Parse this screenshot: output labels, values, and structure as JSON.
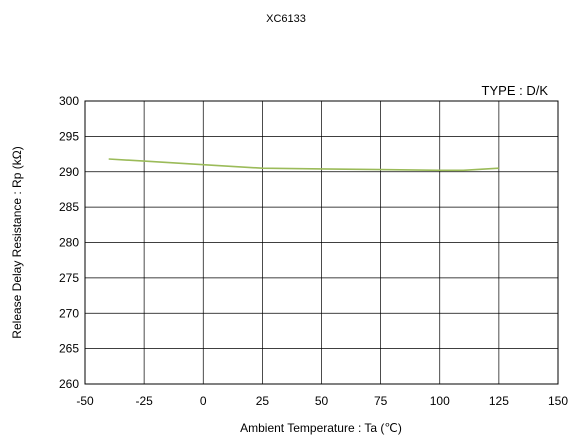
{
  "chart_data": {
    "type": "line",
    "title": "XC6133",
    "annotation": "TYPE : D/K",
    "xlabel": "Ambient Temperature : Ta (℃)",
    "ylabel": "Release Delay Resistance : Rp (kΩ)",
    "xlim": [
      -50,
      150
    ],
    "ylim": [
      260,
      300
    ],
    "xticks": [
      -50,
      -25,
      0,
      25,
      50,
      75,
      100,
      125,
      150
    ],
    "yticks": [
      260,
      265,
      270,
      275,
      280,
      285,
      290,
      295,
      300
    ],
    "grid": true,
    "series": [
      {
        "color": "#9bbb59",
        "x": [
          -40,
          -25,
          0,
          25,
          50,
          75,
          100,
          110,
          125
        ],
        "y": [
          291.8,
          291.5,
          291.0,
          290.5,
          290.4,
          290.3,
          290.2,
          290.2,
          290.5
        ]
      }
    ]
  }
}
